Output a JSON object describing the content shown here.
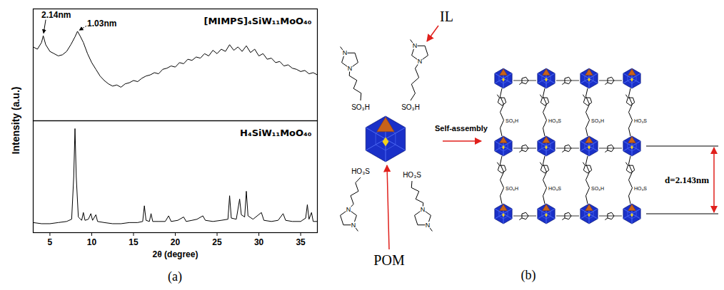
{
  "chart_data": [
    {
      "type": "line",
      "ylabel": "Intensity (a.u.)",
      "xlim": [
        3,
        37
      ],
      "ylim": [
        0,
        100
      ],
      "tick_labels": false,
      "legend": "upper right",
      "series": [
        {
          "name": "[MIMPS]₄SiW₁₁MoO₄₀",
          "color": "#000000",
          "x": [
            3,
            3.5,
            4,
            4.2,
            4.5,
            5,
            5.5,
            6,
            6.5,
            7,
            7.5,
            8,
            8.3,
            8.6,
            9,
            9.5,
            10,
            10.5,
            11,
            11.5,
            12,
            12.5,
            13,
            13.5,
            14,
            14.5,
            15,
            15.5,
            16,
            16.5,
            17,
            17.5,
            18,
            18.5,
            19,
            19.5,
            20,
            20.5,
            21,
            21.5,
            22,
            22.5,
            23,
            23.5,
            24,
            24.5,
            25,
            25.5,
            26,
            26.5,
            27,
            27.5,
            28,
            28.5,
            29,
            29.5,
            30,
            30.5,
            31,
            31.5,
            32,
            32.5,
            33,
            33.5,
            34,
            34.5,
            35,
            35.5,
            36,
            36.5,
            37
          ],
          "values": [
            66,
            64,
            70,
            76,
            68,
            62,
            60,
            58,
            59,
            62,
            68,
            75,
            80,
            76,
            70,
            60,
            52,
            46,
            40,
            36,
            33,
            31,
            32,
            30,
            33,
            34,
            36,
            35,
            38,
            40,
            41,
            43,
            42,
            46,
            47,
            49,
            48,
            52,
            51,
            55,
            54,
            57,
            56,
            60,
            58,
            63,
            60,
            64,
            62,
            68,
            63,
            66,
            62,
            67,
            61,
            64,
            58,
            60,
            55,
            56,
            52,
            53,
            49,
            50,
            47,
            46,
            44,
            45,
            42,
            43,
            41
          ]
        }
      ],
      "annotations": [
        {
          "text": "2.14nm",
          "x": 4.2,
          "y": 76,
          "line_style": "solid"
        },
        {
          "text": "1.03nm",
          "x": 8.3,
          "y": 80,
          "line_style": "dotted"
        }
      ]
    },
    {
      "type": "line",
      "xlabel": "2θ (degree)",
      "xlim": [
        3,
        37
      ],
      "xticks": [
        5,
        10,
        15,
        20,
        25,
        30,
        35
      ],
      "ylim": [
        0,
        100
      ],
      "tick_labels": "x",
      "legend": "upper right",
      "series": [
        {
          "name": "H₄SiW₁₁MoO₄₀",
          "color": "#000000",
          "x": [
            3,
            4,
            5,
            6,
            7,
            7.6,
            7.85,
            8,
            8.15,
            8.4,
            8.8,
            9,
            9.2,
            9.6,
            9.9,
            10.1,
            10.5,
            10.7,
            11.5,
            12.5,
            13.5,
            14.5,
            15.5,
            16.1,
            16.3,
            16.5,
            16.9,
            17.1,
            17.3,
            18,
            18.8,
            19.2,
            19.5,
            20.3,
            21,
            21.3,
            22,
            22.6,
            23.3,
            23.6,
            24.5,
            25.5,
            26.3,
            26.5,
            26.7,
            27.3,
            27.7,
            27.9,
            28.3,
            28.5,
            28.7,
            29.3,
            30.3,
            30.6,
            31.5,
            32.3,
            32.9,
            33.2,
            34,
            35,
            35.6,
            35.8,
            36,
            36.3,
            36.5,
            37
          ],
          "values": [
            9,
            8,
            8,
            9,
            10,
            12,
            50,
            93,
            50,
            14,
            11,
            18,
            11,
            12,
            17,
            11,
            16,
            10,
            9,
            8,
            8,
            9,
            9,
            10,
            24,
            11,
            10,
            17,
            10,
            10,
            10,
            15,
            10,
            11,
            14,
            10,
            11,
            12,
            15,
            11,
            10,
            11,
            12,
            33,
            13,
            12,
            30,
            16,
            14,
            37,
            15,
            12,
            18,
            11,
            10,
            11,
            17,
            11,
            10,
            10,
            13,
            25,
            12,
            18,
            10,
            10
          ]
        }
      ]
    }
  ],
  "diagram": {
    "panel_labels": [
      "(a)",
      "(b)"
    ],
    "il_label": "IL",
    "pom_label": "POM",
    "arrow_label": "Self-assembly",
    "spacing_label": "d=2.143nm",
    "atom": "N",
    "upper_groups": [
      "SO₃H",
      "SO₃H"
    ],
    "lower_groups": [
      "HO₃S",
      "HO₃S"
    ]
  }
}
